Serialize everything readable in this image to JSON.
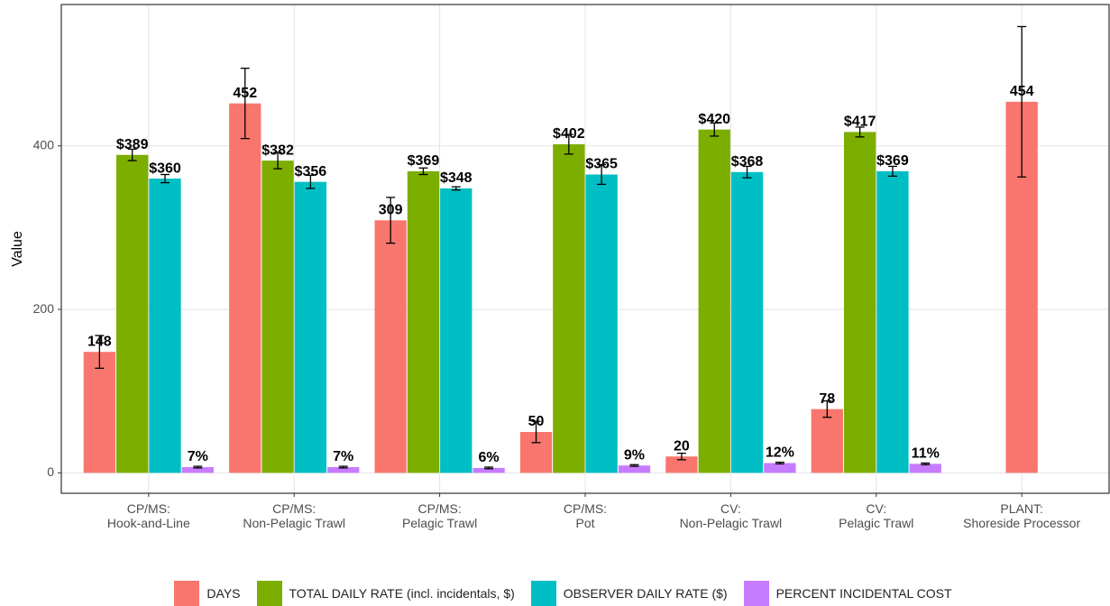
{
  "chart_data": {
    "type": "bar",
    "y_label": "Value",
    "categories": [
      "CP/MS:\nHook-and-Line",
      "CP/MS:\nNon-Pelagic Trawl",
      "CP/MS:\nPelagic Trawl",
      "CP/MS:\nPot",
      "CV:\nNon-Pelagic Trawl",
      "CV:\nPelagic Trawl",
      "PLANT:\nShoreside Processor"
    ],
    "series": [
      {
        "name": "DAYS",
        "color": "#F8766D",
        "values": [
          148,
          452,
          309,
          50,
          20,
          78,
          454
        ],
        "errors": [
          20,
          43,
          28,
          13,
          4,
          10,
          92
        ]
      },
      {
        "name": "TOTAL DAILY RATE (incl. incidentals, $)",
        "color": "#7CAE00",
        "values": [
          389,
          382,
          369,
          402,
          420,
          417,
          null
        ],
        "value_labels": [
          "$389",
          "$382",
          "$369",
          "$402",
          "$420",
          "$417",
          null
        ],
        "errors": [
          7,
          10,
          4,
          12,
          8,
          6,
          null
        ]
      },
      {
        "name": "OBSERVER DAILY RATE ($)",
        "color": "#00BFC4",
        "values": [
          360,
          356,
          348,
          365,
          368,
          369,
          null
        ],
        "value_labels": [
          "$360",
          "$356",
          "$348",
          "$365",
          "$368",
          "$369",
          null
        ],
        "errors": [
          5,
          8,
          2,
          12,
          7,
          6,
          null
        ]
      },
      {
        "name": "PERCENT INCIDENTAL COST",
        "color": "#C77CFF",
        "values": [
          7,
          7,
          6,
          9,
          12,
          11,
          null
        ],
        "value_labels": [
          "7%",
          "7%",
          "6%",
          "9%",
          "12%",
          "11%",
          null
        ],
        "errors": [
          1,
          1,
          1,
          1,
          1,
          1,
          null
        ]
      }
    ],
    "ylim": [
      -25,
      573
    ],
    "yticks": [
      0,
      200,
      400
    ],
    "grid": true,
    "legend": "bottom"
  }
}
